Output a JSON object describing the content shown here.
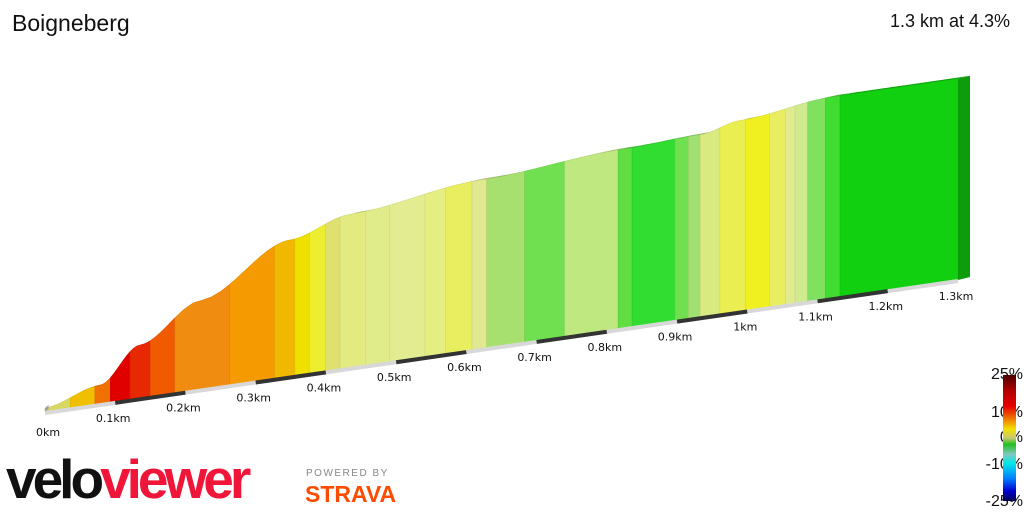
{
  "header": {
    "title": "Boigneberg",
    "summary": "1.3 km at 4.3%"
  },
  "chart_data": {
    "type": "area",
    "title": "Boigneberg",
    "x_unit": "km",
    "xlim": [
      0,
      1.3
    ],
    "x_ticks": [
      {
        "v": 0,
        "label": "0km"
      },
      {
        "v": 0.1,
        "label": "0.1km"
      },
      {
        "v": 0.2,
        "label": "0.2km"
      },
      {
        "v": 0.3,
        "label": "0.3km"
      },
      {
        "v": 0.4,
        "label": "0.4km"
      },
      {
        "v": 0.5,
        "label": "0.5km"
      },
      {
        "v": 0.6,
        "label": "0.6km"
      },
      {
        "v": 0.7,
        "label": "0.7km"
      },
      {
        "v": 0.8,
        "label": "0.8km"
      },
      {
        "v": 0.9,
        "label": "0.9km"
      },
      {
        "v": 1.0,
        "label": "1km"
      },
      {
        "v": 1.1,
        "label": "1.1km"
      },
      {
        "v": 1.2,
        "label": "1.2km"
      },
      {
        "v": 1.3,
        "label": "1.3km"
      }
    ],
    "elevation_profile": {
      "km": [
        0,
        0.078,
        0.135,
        0.221,
        0.349,
        0.434,
        0.619,
        0.819,
        0.933,
        0.99,
        1.118,
        1.3
      ],
      "relative_m": [
        0,
        4.4,
        14.5,
        25,
        39,
        44,
        48.5,
        51.5,
        52.5,
        55,
        58,
        58
      ]
    },
    "gradient_segments": [
      {
        "from": 0,
        "to": 0.036,
        "color": "#d8d860"
      },
      {
        "from": 0.036,
        "to": 0.071,
        "color": "#f0c000"
      },
      {
        "from": 0.071,
        "to": 0.093,
        "color": "#f07000"
      },
      {
        "from": 0.093,
        "to": 0.121,
        "color": "#e00000"
      },
      {
        "from": 0.121,
        "to": 0.15,
        "color": "#e82800"
      },
      {
        "from": 0.15,
        "to": 0.185,
        "color": "#f05a00"
      },
      {
        "from": 0.185,
        "to": 0.263,
        "color": "#f08c10"
      },
      {
        "from": 0.263,
        "to": 0.327,
        "color": "#f59a00"
      },
      {
        "from": 0.327,
        "to": 0.356,
        "color": "#f0b800"
      },
      {
        "from": 0.356,
        "to": 0.377,
        "color": "#f0e000"
      },
      {
        "from": 0.377,
        "to": 0.399,
        "color": "#eeee30"
      },
      {
        "from": 0.399,
        "to": 0.42,
        "color": "#e0e070"
      },
      {
        "from": 0.42,
        "to": 0.456,
        "color": "#e2ea80"
      },
      {
        "from": 0.456,
        "to": 0.491,
        "color": "#e0eb8a"
      },
      {
        "from": 0.491,
        "to": 0.541,
        "color": "#e3ec90"
      },
      {
        "from": 0.541,
        "to": 0.57,
        "color": "#e5ee80"
      },
      {
        "from": 0.57,
        "to": 0.608,
        "color": "#e8ee60"
      },
      {
        "from": 0.608,
        "to": 0.629,
        "color": "#e0e890"
      },
      {
        "from": 0.629,
        "to": 0.683,
        "color": "#a8e070"
      },
      {
        "from": 0.683,
        "to": 0.74,
        "color": "#70e050"
      },
      {
        "from": 0.74,
        "to": 0.816,
        "color": "#c0e880"
      },
      {
        "from": 0.816,
        "to": 0.836,
        "color": "#60dd40"
      },
      {
        "from": 0.836,
        "to": 0.897,
        "color": "#30dd30"
      },
      {
        "from": 0.897,
        "to": 0.916,
        "color": "#70e050"
      },
      {
        "from": 0.916,
        "to": 0.933,
        "color": "#a0e070"
      },
      {
        "from": 0.933,
        "to": 0.961,
        "color": "#d8ea80"
      },
      {
        "from": 0.961,
        "to": 0.997,
        "color": "#eaee50"
      },
      {
        "from": 0.997,
        "to": 1.032,
        "color": "#f0f020"
      },
      {
        "from": 1.032,
        "to": 1.054,
        "color": "#e8ee60"
      },
      {
        "from": 1.054,
        "to": 1.068,
        "color": "#e0eb90"
      },
      {
        "from": 1.068,
        "to": 1.086,
        "color": "#d0ea90"
      },
      {
        "from": 1.086,
        "to": 1.111,
        "color": "#80e060"
      },
      {
        "from": 1.111,
        "to": 1.132,
        "color": "#40dd30"
      },
      {
        "from": 1.132,
        "to": 1.3,
        "color": "#10d010"
      }
    ],
    "legend": {
      "labels": [
        "25%",
        "10%",
        "0%",
        "-10%",
        "-25%"
      ]
    }
  },
  "branding": {
    "logo_a": "velo",
    "logo_b": "viewer",
    "powered": "POWERED BY",
    "strava": "STRAVA"
  }
}
